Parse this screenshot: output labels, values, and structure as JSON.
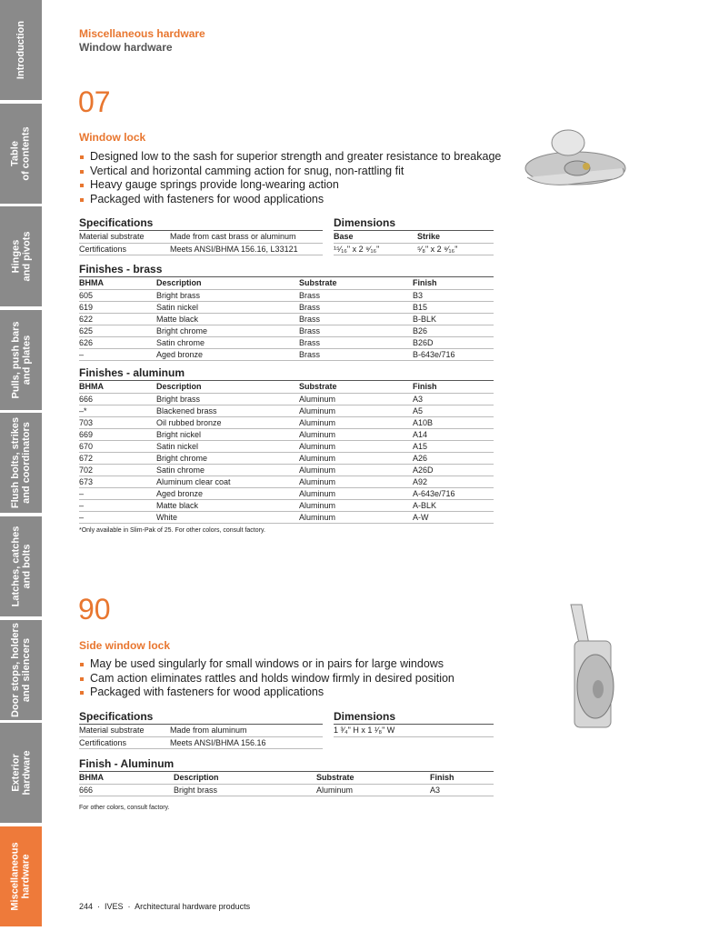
{
  "sidebar": {
    "tabs": [
      "Introduction",
      "Table\nof contents",
      "Hinges\nand pivots",
      "Pulls, push bars\nand plates",
      "Flush bolts, strikes\nand coordinators",
      "Latches, catches\nand bolts",
      "Door stops, holders\nand silencers",
      "Exterior\nhardware",
      "Miscellaneous\nhardware"
    ],
    "active_index": 8,
    "colors": {
      "inactive": "#8a8a8a",
      "active": "#ee7a3a"
    }
  },
  "header": {
    "category": "Miscellaneous hardware",
    "subcategory": "Window hardware"
  },
  "products": [
    {
      "number": "07",
      "title": "Window lock",
      "features": [
        "Designed low to the sash for superior strength and greater resistance to breakage",
        "Vertical and horizontal camming action for snug, non-rattling fit",
        "Heavy gauge springs provide long-wearing action",
        "Packaged with fasteners for wood applications"
      ],
      "spec_heading": "Specifications",
      "specs": [
        [
          "Material substrate",
          "Made from cast brass or aluminum"
        ],
        [
          "Certifications",
          "Meets ANSI/BHMA 156.16, L33121"
        ]
      ],
      "dim_heading": "Dimensions",
      "dim_headers": [
        "Base",
        "Strike"
      ],
      "dim_values": [
        "¹⁵⁄₁₆\" x 2 ⁹⁄₁₆\"",
        "⁵⁄₈\" x 2 ⁹⁄₁₆\""
      ],
      "finish_tables": [
        {
          "heading": "Finishes - brass",
          "columns": [
            "BHMA",
            "Description",
            "Substrate",
            "Finish"
          ],
          "rows": [
            [
              "605",
              "Bright brass",
              "Brass",
              "B3"
            ],
            [
              "619",
              "Satin nickel",
              "Brass",
              "B15"
            ],
            [
              "622",
              "Matte black",
              "Brass",
              "B-BLK"
            ],
            [
              "625",
              "Bright chrome",
              "Brass",
              "B26"
            ],
            [
              "626",
              "Satin chrome",
              "Brass",
              "B26D"
            ],
            [
              "–",
              "Aged bronze",
              "Brass",
              "B-643e/716"
            ]
          ]
        },
        {
          "heading": "Finishes - aluminum",
          "columns": [
            "BHMA",
            "Description",
            "Substrate",
            "Finish"
          ],
          "rows": [
            [
              "666",
              "Bright brass",
              "Aluminum",
              "A3"
            ],
            [
              "–*",
              "Blackened brass",
              "Aluminum",
              "A5"
            ],
            [
              "703",
              "Oil rubbed bronze",
              "Aluminum",
              "A10B"
            ],
            [
              "669",
              "Bright nickel",
              "Aluminum",
              "A14"
            ],
            [
              "670",
              "Satin nickel",
              "Aluminum",
              "A15"
            ],
            [
              "672",
              "Bright chrome",
              "Aluminum",
              "A26"
            ],
            [
              "702",
              "Satin chrome",
              "Aluminum",
              "A26D"
            ],
            [
              "673",
              "Aluminum clear coat",
              "Aluminum",
              "A92"
            ],
            [
              "–",
              "Aged bronze",
              "Aluminum",
              "A-643e/716"
            ],
            [
              "–",
              "Matte black",
              "Aluminum",
              "A-BLK"
            ],
            [
              "–",
              "White",
              "Aluminum",
              "A-W"
            ]
          ]
        }
      ],
      "note": "*Only available in Slim-Pak of 25. For other colors, consult factory."
    },
    {
      "number": "90",
      "title": "Side window lock",
      "features": [
        "May be used singularly for small windows or in pairs for large windows",
        "Cam action eliminates rattles and holds window firmly in desired position",
        "Packaged with fasteners for wood applications"
      ],
      "spec_heading": "Specifications",
      "specs": [
        [
          "Material substrate",
          "Made from aluminum"
        ],
        [
          "Certifications",
          "Meets ANSI/BHMA 156.16"
        ]
      ],
      "dim_heading": "Dimensions",
      "dim_value": "1 ³⁄₄\" H x 1 ¹⁄₈\" W",
      "finish_tables": [
        {
          "heading": "Finish - Aluminum",
          "columns": [
            "BHMA",
            "Description",
            "Substrate",
            "Finish"
          ],
          "rows": [
            [
              "666",
              "Bright brass",
              "Aluminum",
              "A3"
            ]
          ]
        }
      ],
      "note": "For other colors, consult factory."
    }
  ],
  "footer": {
    "page": "244",
    "brand": "IVES",
    "section": "Architectural hardware products"
  }
}
